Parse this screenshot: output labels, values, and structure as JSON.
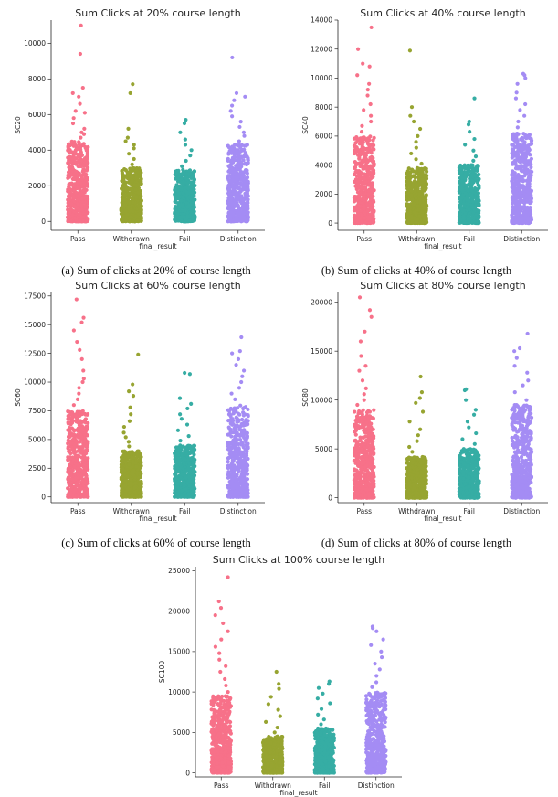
{
  "chart_data": [
    {
      "type": "scatter",
      "title": "Sum Clicks at 20% course length",
      "caption": "(a) Sum of clicks at 20% of course length",
      "xlabel": "final_result",
      "ylabel": "SC20",
      "categories": [
        "Pass",
        "Withdrawn",
        "Fail",
        "Distinction"
      ],
      "ylim": [
        -500,
        11300
      ],
      "yticks": [
        0,
        2000,
        4000,
        6000,
        8000,
        10000
      ],
      "colors": [
        "#f77189",
        "#97a431",
        "#36ada4",
        "#a48cf4"
      ],
      "series": [
        {
          "category": "Pass",
          "dense_max": 4500,
          "outliers": [
            4700,
            4900,
            5000,
            5200,
            5500,
            5800,
            6100,
            6200,
            6600,
            7000,
            7200,
            7500,
            9400,
            11000
          ]
        },
        {
          "category": "Withdrawn",
          "dense_max": 3000,
          "outliers": [
            3200,
            3500,
            3800,
            4100,
            4300,
            4500,
            4700,
            5200,
            7200,
            7700
          ]
        },
        {
          "category": "Fail",
          "dense_max": 2900,
          "outliers": [
            3100,
            3400,
            3700,
            4000,
            4300,
            4600,
            5000,
            5500,
            5700
          ]
        },
        {
          "category": "Distinction",
          "dense_max": 4300,
          "outliers": [
            4500,
            4800,
            5000,
            5300,
            5600,
            5900,
            6200,
            6500,
            6800,
            7000,
            7200,
            9200
          ]
        }
      ]
    },
    {
      "type": "scatter",
      "title": "Sum Clicks at 40% course length",
      "caption": "(b) Sum of clicks at 40% of course length",
      "xlabel": "final_result",
      "ylabel": "SC40",
      "categories": [
        "Pass",
        "Withdrawn",
        "Fail",
        "Distinction"
      ],
      "ylim": [
        -500,
        14000
      ],
      "yticks": [
        0,
        2000,
        4000,
        6000,
        8000,
        10000,
        12000,
        14000
      ],
      "colors": [
        "#f77189",
        "#97a431",
        "#36ada4",
        "#a48cf4"
      ],
      "series": [
        {
          "category": "Pass",
          "dense_max": 6000,
          "outliers": [
            6300,
            6700,
            7000,
            7400,
            7800,
            8200,
            8800,
            9200,
            9600,
            10200,
            10800,
            11000,
            12000,
            13500
          ]
        },
        {
          "category": "Withdrawn",
          "dense_max": 3800,
          "outliers": [
            4100,
            4400,
            4800,
            5200,
            5600,
            6000,
            6500,
            7000,
            7400,
            8000,
            11900
          ]
        },
        {
          "category": "Fail",
          "dense_max": 4000,
          "outliers": [
            4300,
            4600,
            5000,
            5400,
            5800,
            6300,
            6800,
            7000,
            8600
          ]
        },
        {
          "category": "Distinction",
          "dense_max": 6200,
          "outliers": [
            6600,
            7000,
            7400,
            7800,
            8200,
            8600,
            9000,
            9600,
            10000,
            10200,
            10300
          ]
        }
      ]
    },
    {
      "type": "scatter",
      "title": "Sum Clicks at 60% course length",
      "caption": "(c) Sum of clicks at 60% of course length",
      "xlabel": "final_result",
      "ylabel": "SC60",
      "categories": [
        "Pass",
        "Withdrawn",
        "Fail",
        "Distinction"
      ],
      "ylim": [
        -500,
        17800
      ],
      "yticks": [
        0,
        2500,
        5000,
        7500,
        10000,
        12500,
        15000,
        17500
      ],
      "colors": [
        "#f77189",
        "#97a431",
        "#36ada4",
        "#a48cf4"
      ],
      "series": [
        {
          "category": "Pass",
          "dense_max": 7500,
          "outliers": [
            8000,
            8500,
            9000,
            9500,
            10000,
            10300,
            11000,
            12000,
            12800,
            13500,
            14500,
            15200,
            15600,
            17200
          ]
        },
        {
          "category": "Withdrawn",
          "dense_max": 4000,
          "outliers": [
            4400,
            4800,
            5200,
            5600,
            6100,
            6600,
            7200,
            7800,
            8800,
            9200,
            9800,
            12400
          ]
        },
        {
          "category": "Fail",
          "dense_max": 4500,
          "outliers": [
            4900,
            5300,
            5800,
            6300,
            6800,
            7200,
            7700,
            8100,
            8600,
            10700,
            10800
          ]
        },
        {
          "category": "Distinction",
          "dense_max": 8000,
          "outliers": [
            8500,
            9000,
            9500,
            10000,
            10500,
            11000,
            11500,
            12000,
            12500,
            12700,
            13900
          ]
        }
      ]
    },
    {
      "type": "scatter",
      "title": "Sum Clicks at 80% course length",
      "caption": "(d) Sum of clicks at 80% of course length",
      "xlabel": "final_result",
      "ylabel": "SC80",
      "categories": [
        "Pass",
        "Withdrawn",
        "Fail",
        "Distinction"
      ],
      "ylim": [
        -500,
        21000
      ],
      "yticks": [
        0,
        5000,
        10000,
        15000,
        20000
      ],
      "colors": [
        "#f77189",
        "#97a431",
        "#36ada4",
        "#a48cf4"
      ],
      "series": [
        {
          "category": "Pass",
          "dense_max": 9000,
          "outliers": [
            9500,
            10000,
            10600,
            11200,
            12000,
            13000,
            13500,
            14500,
            16000,
            17000,
            18500,
            19200,
            20500
          ]
        },
        {
          "category": "Withdrawn",
          "dense_max": 4200,
          "outliers": [
            4700,
            5200,
            5800,
            6400,
            7000,
            7800,
            8800,
            9700,
            10200,
            10800,
            12400
          ]
        },
        {
          "category": "Fail",
          "dense_max": 5000,
          "outliers": [
            5500,
            6000,
            6600,
            7200,
            7800,
            8500,
            9000,
            10000,
            11000,
            11100
          ]
        },
        {
          "category": "Distinction",
          "dense_max": 9500,
          "outliers": [
            10000,
            10800,
            11500,
            12000,
            12800,
            13500,
            14300,
            15000,
            15300,
            16800
          ]
        }
      ]
    },
    {
      "type": "scatter",
      "title": "Sum Clicks at 100% course length",
      "caption": "",
      "xlabel": "final_result",
      "ylabel": "SC100",
      "categories": [
        "Pass",
        "Withdrawn",
        "Fail",
        "Distinction"
      ],
      "ylim": [
        -500,
        25500
      ],
      "yticks": [
        0,
        5000,
        10000,
        15000,
        20000,
        25000
      ],
      "colors": [
        "#f77189",
        "#97a431",
        "#36ada4",
        "#a48cf4"
      ],
      "series": [
        {
          "category": "Pass",
          "dense_max": 9500,
          "outliers": [
            10000,
            10800,
            11600,
            12500,
            13200,
            14000,
            14800,
            15600,
            16500,
            17500,
            18500,
            19500,
            20400,
            21200,
            24200
          ]
        },
        {
          "category": "Withdrawn",
          "dense_max": 4500,
          "outliers": [
            5000,
            5600,
            6300,
            7000,
            7800,
            8500,
            9400,
            10400,
            11000,
            12500
          ]
        },
        {
          "category": "Fail",
          "dense_max": 5500,
          "outliers": [
            6000,
            6600,
            7200,
            7900,
            8600,
            9200,
            9800,
            10500,
            11000,
            11300
          ]
        },
        {
          "category": "Distinction",
          "dense_max": 10000,
          "outliers": [
            10600,
            11200,
            12000,
            12800,
            13500,
            14300,
            15000,
            15800,
            16500,
            17500,
            17900,
            18100
          ]
        }
      ]
    }
  ]
}
